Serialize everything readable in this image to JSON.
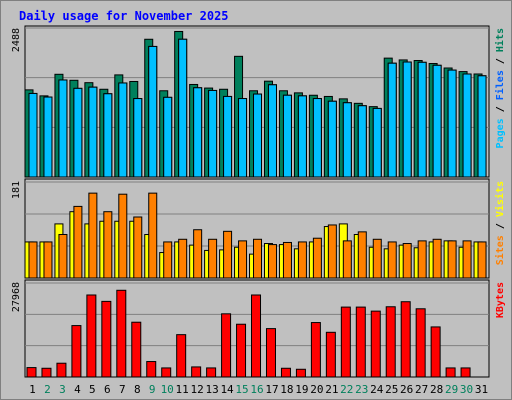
{
  "chart_data": {
    "type": "bar",
    "title": "Daily usage for November 2025",
    "x": [
      "1",
      "2",
      "3",
      "4",
      "5",
      "6",
      "7",
      "8",
      "9",
      "10",
      "11",
      "12",
      "13",
      "14",
      "15",
      "16",
      "17",
      "18",
      "19",
      "20",
      "21",
      "22",
      "23",
      "24",
      "25",
      "26",
      "27",
      "28",
      "29",
      "30",
      "31"
    ],
    "day_colors": [
      "#000000",
      "#00805c",
      "#00805c",
      "#000000",
      "#000000",
      "#000000",
      "#000000",
      "#000000",
      "#00805c",
      "#00805c",
      "#000000",
      "#000000",
      "#000000",
      "#000000",
      "#00805c",
      "#00805c",
      "#000000",
      "#000000",
      "#000000",
      "#000000",
      "#000000",
      "#00805c",
      "#00805c",
      "#000000",
      "#000000",
      "#000000",
      "#000000",
      "#000000",
      "#00805c",
      "#00805c",
      "#000000"
    ],
    "panels": [
      {
        "id": "hits-files-pages",
        "y_max": 2488,
        "y_label": "2488",
        "legend": [
          {
            "label": "Pages",
            "color": "#00c0ff"
          },
          {
            "label": "Files",
            "color": "#0060ff"
          },
          {
            "label": "Hits",
            "color": "#00805c"
          }
        ],
        "series": [
          {
            "name": "Hits",
            "color": "#00805c",
            "values": [
              1455,
              1355,
              1715,
              1615,
              1575,
              1465,
              1705,
              1595,
              2300,
              1440,
              2430,
              1545,
              1485,
              1465,
              2015,
              1440,
              1600,
              1440,
              1405,
              1365,
              1345,
              1305,
              1230,
              1175,
              1985,
              1955,
              1945,
              1895,
              1820,
              1760,
              1720
            ]
          },
          {
            "name": "Files",
            "color": "#0060ff",
            "values": [
              1395,
              1335,
              1620,
              1480,
              1500,
              1390,
              1570,
              1310,
              2180,
              1330,
              2300,
              1490,
              1445,
              1345,
              1310,
              1385,
              1540,
              1365,
              1355,
              1310,
              1265,
              1240,
              1190,
              1145,
              1900,
              1920,
              1915,
              1865,
              1785,
              1720,
              1690
            ]
          },
          {
            "name": "Pages",
            "color": "#00c0ff",
            "values": [
              1395,
              1335,
              1620,
              1480,
              1500,
              1390,
              1570,
              1310,
              2180,
              1330,
              2300,
              1490,
              1445,
              1345,
              1310,
              1385,
              1540,
              1365,
              1355,
              1310,
              1265,
              1240,
              1190,
              1145,
              1900,
              1920,
              1915,
              1865,
              1785,
              1720,
              1690
            ]
          }
        ]
      },
      {
        "id": "visits-sites",
        "y_max": 181,
        "y_label": "181",
        "legend": [
          {
            "label": "Sites",
            "color": "#ff8000"
          },
          {
            "label": "Visits",
            "color": "#ffff00"
          }
        ],
        "series": [
          {
            "name": "Visits",
            "color": "#ffff00",
            "values": [
              68,
              68,
              102,
              125,
              102,
              107,
              107,
              107,
              82,
              48,
              68,
              62,
              52,
              53,
              58,
              45,
              65,
              63,
              55,
              68,
              97,
              102,
              82,
              58,
              55,
              62,
              57,
              68,
              70,
              58,
              68
            ]
          },
          {
            "name": "Sites",
            "color": "#ff8000",
            "values": [
              68,
              68,
              82,
              135,
              160,
              125,
              158,
              115,
              160,
              68,
              73,
              91,
              73,
              88,
              70,
              73,
              63,
              67,
              68,
              75,
              100,
              70,
              87,
              73,
              68,
              65,
              70,
              73,
              70,
              70,
              68
            ]
          }
        ]
      },
      {
        "id": "kbytes",
        "y_max": 27968,
        "y_label": "27968",
        "legend": [
          {
            "label": "KBytes",
            "color": "#ff0000"
          }
        ],
        "series": [
          {
            "name": "KBytes",
            "color": "#ff0000",
            "values": [
              2800,
              2600,
              4100,
              15300,
              24400,
              22500,
              25800,
              16300,
              4600,
              2700,
              12600,
              3000,
              2700,
              18800,
              15700,
              24400,
              14400,
              2600,
              2300,
              16200,
              13300,
              20800,
              20800,
              19600,
              20900,
              22400,
              20300,
              14900,
              2700,
              2700,
              0
            ]
          }
        ]
      }
    ]
  }
}
